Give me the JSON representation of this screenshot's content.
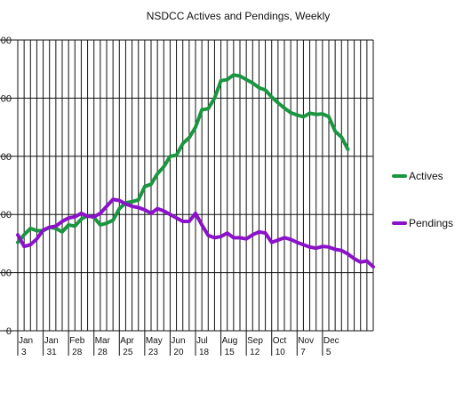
{
  "chart_data": {
    "type": "line",
    "title": "NSDCC Actives and Pendings, Weekly",
    "xlabel": "",
    "ylabel": "",
    "ylim": [
      0,
      500
    ],
    "ytick_labels": [
      "0",
      "00",
      "00",
      "00",
      "00",
      "00"
    ],
    "xticks": [
      {
        "month": "Jan",
        "day": "3"
      },
      {
        "month": "Jan",
        "day": "31"
      },
      {
        "month": "Feb",
        "day": "28"
      },
      {
        "month": "Mar",
        "day": "28"
      },
      {
        "month": "Apr",
        "day": "25"
      },
      {
        "month": "May",
        "day": "23"
      },
      {
        "month": "Jun",
        "day": "20"
      },
      {
        "month": "Jul",
        "day": "18"
      },
      {
        "month": "Aug",
        "day": "15"
      },
      {
        "month": "Sep",
        "day": "12"
      },
      {
        "month": "Oct",
        "day": "10"
      },
      {
        "month": "Nov",
        "day": "7"
      },
      {
        "month": "Dec",
        "day": "5"
      }
    ],
    "grid": true,
    "legend_position": "right",
    "series": [
      {
        "name": "Actives",
        "color": "#1a9641",
        "values": [
          152,
          165,
          176,
          172,
          172,
          178,
          176,
          170,
          182,
          180,
          192,
          198,
          195,
          182,
          185,
          190,
          210,
          220,
          222,
          225,
          248,
          252,
          270,
          282,
          300,
          302,
          322,
          332,
          350,
          380,
          382,
          400,
          430,
          432,
          440,
          438,
          432,
          426,
          418,
          414,
          402,
          392,
          383,
          375,
          371,
          368,
          374,
          372,
          373,
          368,
          343,
          333,
          312
        ]
      },
      {
        "name": "Pendings",
        "color": "#8b12c9",
        "values": [
          165,
          145,
          148,
          158,
          173,
          178,
          180,
          188,
          194,
          196,
          202,
          197,
          196,
          202,
          214,
          226,
          224,
          218,
          214,
          212,
          208,
          202,
          210,
          206,
          200,
          194,
          188,
          188,
          202,
          182,
          164,
          160,
          162,
          168,
          160,
          160,
          158,
          165,
          170,
          168,
          152,
          156,
          160,
          157,
          152,
          148,
          144,
          142,
          145,
          144,
          140,
          138,
          132,
          124,
          118,
          120,
          110
        ]
      }
    ]
  }
}
